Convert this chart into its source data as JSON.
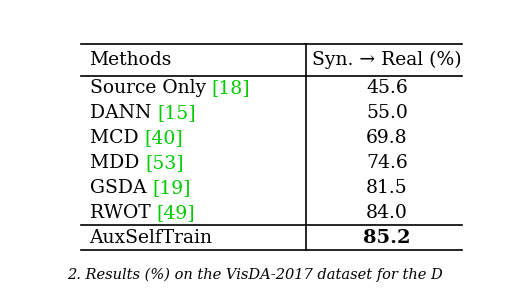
{
  "col_headers": [
    "Methods",
    "Syn. → Real (%)"
  ],
  "rows": [
    {
      "method": "Source Only ",
      "ref": "[18]",
      "value": "45.6",
      "bold": false
    },
    {
      "method": "DANN ",
      "ref": "[15]",
      "value": "55.0",
      "bold": false
    },
    {
      "method": "MCD ",
      "ref": "[40]",
      "value": "69.8",
      "bold": false
    },
    {
      "method": "MDD ",
      "ref": "[53]",
      "value": "74.6",
      "bold": false
    },
    {
      "method": "GSDA ",
      "ref": "[19]",
      "value": "81.5",
      "bold": false
    },
    {
      "method": "RWOT ",
      "ref": "[49]",
      "value": "84.0",
      "bold": false
    },
    {
      "method": "AuxSelfTrain",
      "ref": "",
      "value": "85.2",
      "bold": true
    }
  ],
  "caption": "2. Results (%) on the VisDA-2017 dataset for the D",
  "bg_color": "#ffffff",
  "text_color": "#000000",
  "ref_color": "#00cc00",
  "font_size": 13.5,
  "caption_font_size": 10.5,
  "line_lw": 1.2
}
